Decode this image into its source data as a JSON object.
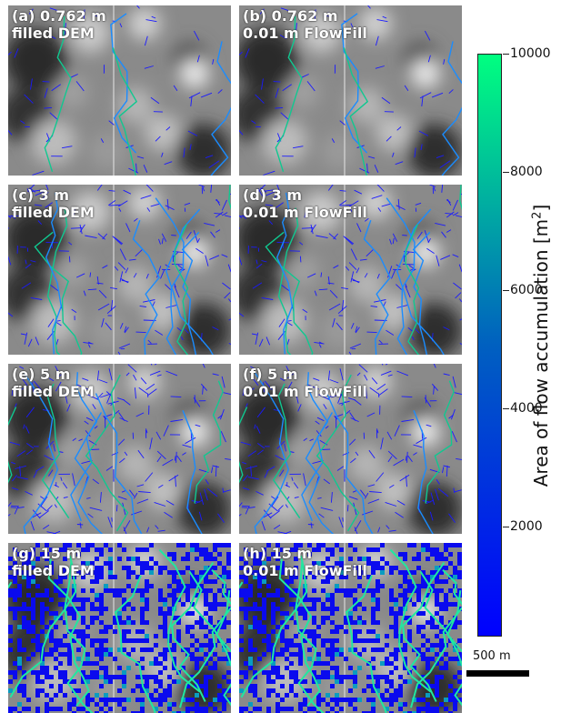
{
  "panels": [
    {
      "id": "a",
      "line1": "(a) 0.762 m",
      "line2": "filled DEM"
    },
    {
      "id": "b",
      "line1": "(b) 0.762 m",
      "line2": "0.01 m FlowFill"
    },
    {
      "id": "c",
      "line1": "(c) 3 m",
      "line2": "filled DEM"
    },
    {
      "id": "d",
      "line1": "(d) 3 m",
      "line2": "0.01 m FlowFill"
    },
    {
      "id": "e",
      "line1": "(e) 5 m",
      "line2": "filled DEM"
    },
    {
      "id": "f",
      "line1": "(f) 5 m",
      "line2": "0.01 m FlowFill"
    },
    {
      "id": "g",
      "line1": "(g) 15 m",
      "line2": "filled DEM"
    },
    {
      "id": "h",
      "line1": "(h) 15 m",
      "line2": "0.01 m FlowFill"
    }
  ],
  "colorbar": {
    "label": "Area of flow accumulation [m",
    "label_sup": "2",
    "label_end": "]",
    "ticks": [
      "10000",
      "8000",
      "6000",
      "4000",
      "2000"
    ],
    "color_low": "#0000ff",
    "color_high": "#00ff80"
  },
  "scalebar": {
    "label": "500 m"
  }
}
